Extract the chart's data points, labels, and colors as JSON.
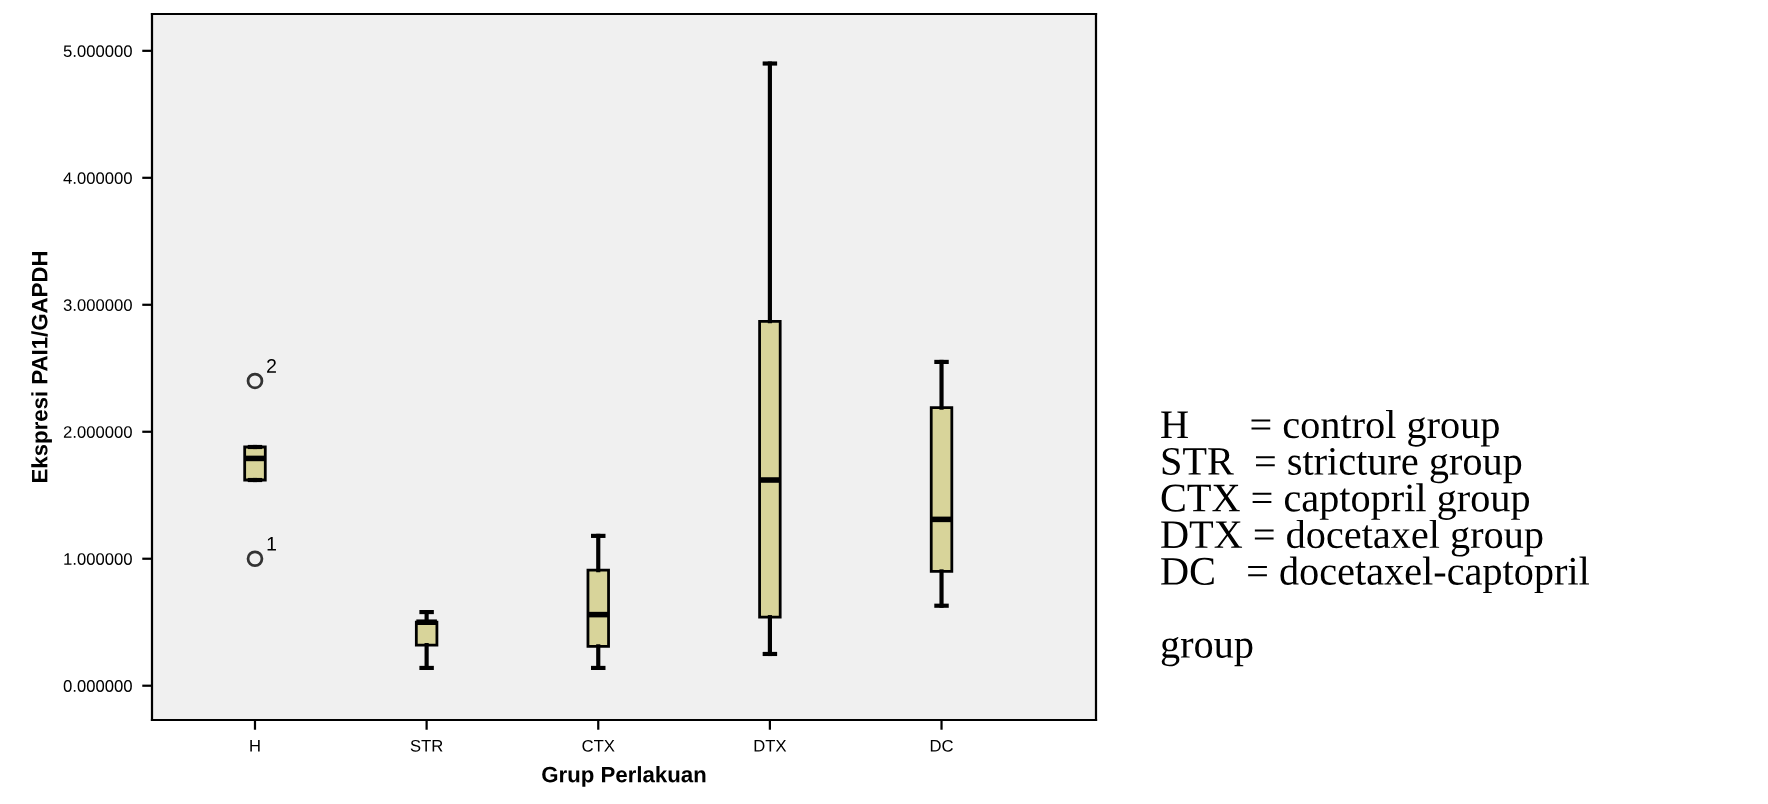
{
  "chart_data": {
    "type": "box",
    "xlabel": "Grup Perlakuan",
    "ylabel": "Ekspresi PAI1/GAPDH",
    "categories": [
      "H",
      "STR",
      "CTX",
      "DTX",
      "DC"
    ],
    "boxes": [
      {
        "low": 1.62,
        "q1": 1.62,
        "median": 1.79,
        "q3": 1.88,
        "high": 1.88,
        "outliers": [
          2.4,
          1.0
        ]
      },
      {
        "low": 0.14,
        "q1": 0.32,
        "median": 0.5,
        "q3": 0.5,
        "high": 0.58
      },
      {
        "low": 0.14,
        "q1": 0.31,
        "median": 0.56,
        "q3": 0.91,
        "high": 1.18
      },
      {
        "low": 0.25,
        "q1": 0.54,
        "median": 1.62,
        "q3": 2.87,
        "high": 4.9
      },
      {
        "low": 0.63,
        "q1": 0.9,
        "median": 1.31,
        "q3": 2.19,
        "high": 2.55
      }
    ],
    "color": "#d8d49a",
    "ylim": [
      -0.27,
      5.29
    ],
    "yticks": [
      {
        "value": 0,
        "label": "0.000000"
      },
      {
        "value": 1,
        "label": "1.000000"
      },
      {
        "value": 2,
        "label": "2.000000"
      },
      {
        "value": 3,
        "label": "3.000000"
      },
      {
        "value": 4,
        "label": "4.000000"
      },
      {
        "value": 5,
        "label": "5.000000"
      }
    ],
    "grid": false,
    "annotations": [
      "2",
      "1",
      "H      = control group\nSTR  = stricture group\nCTX = captopril group\nDTX = docetaxel group\nDC   = docetaxel-captopril\n\ngroup"
    ]
  }
}
